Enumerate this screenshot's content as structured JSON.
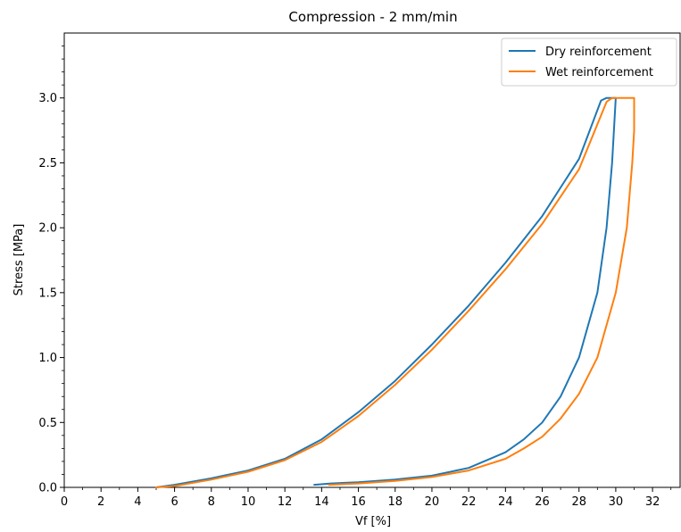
{
  "chart_data": {
    "type": "line",
    "title": "Compression - 2 mm/min",
    "xlabel": "Vf [%]",
    "ylabel": "Stress [MPa]",
    "xlim": [
      0,
      33.5
    ],
    "ylim": [
      0,
      3.5
    ],
    "xticks": [
      0,
      2,
      4,
      6,
      8,
      10,
      12,
      14,
      16,
      18,
      20,
      22,
      24,
      26,
      28,
      30,
      32
    ],
    "yticks": [
      0.0,
      0.5,
      1.0,
      1.5,
      2.0,
      2.5,
      3.0
    ],
    "ytick_labels": [
      "0.0",
      "0.5",
      "1.0",
      "1.5",
      "2.0",
      "2.5",
      "3.0"
    ],
    "grid": false,
    "legend_position": "top-right",
    "series": [
      {
        "name": "Dry reinforcement",
        "color": "#1f77b4",
        "x": [
          5.0,
          6.0,
          8.0,
          10.0,
          12.0,
          14.0,
          16.0,
          18.0,
          20.0,
          22.0,
          24.0,
          26.0,
          28.0,
          29.2,
          29.5,
          30.0,
          29.8,
          29.5,
          29.0,
          28.0,
          27.0,
          26.0,
          25.0,
          24.0,
          22.0,
          20.0,
          18.0,
          16.0,
          14.5,
          13.6
        ],
        "y": [
          0.0,
          0.02,
          0.07,
          0.13,
          0.22,
          0.37,
          0.58,
          0.82,
          1.1,
          1.4,
          1.73,
          2.09,
          2.53,
          2.98,
          3.0,
          3.0,
          2.5,
          2.0,
          1.5,
          1.0,
          0.7,
          0.5,
          0.37,
          0.27,
          0.15,
          0.09,
          0.06,
          0.04,
          0.03,
          0.02
        ]
      },
      {
        "name": "Wet reinforcement",
        "color": "#ff7f0e",
        "x": [
          5.0,
          6.0,
          8.0,
          10.0,
          12.0,
          14.0,
          16.0,
          18.0,
          20.0,
          22.0,
          24.0,
          26.0,
          28.0,
          29.5,
          29.8,
          31.0,
          31.0,
          30.9,
          30.6,
          30.0,
          29.0,
          28.0,
          27.0,
          26.0,
          25.0,
          24.0,
          22.0,
          20.0,
          18.0,
          16.0,
          14.4
        ],
        "y": [
          0.0,
          0.01,
          0.06,
          0.12,
          0.21,
          0.35,
          0.55,
          0.79,
          1.06,
          1.36,
          1.68,
          2.03,
          2.45,
          2.97,
          3.0,
          3.0,
          2.75,
          2.5,
          2.0,
          1.5,
          1.0,
          0.72,
          0.53,
          0.39,
          0.3,
          0.22,
          0.13,
          0.08,
          0.05,
          0.03,
          0.02
        ]
      }
    ]
  }
}
